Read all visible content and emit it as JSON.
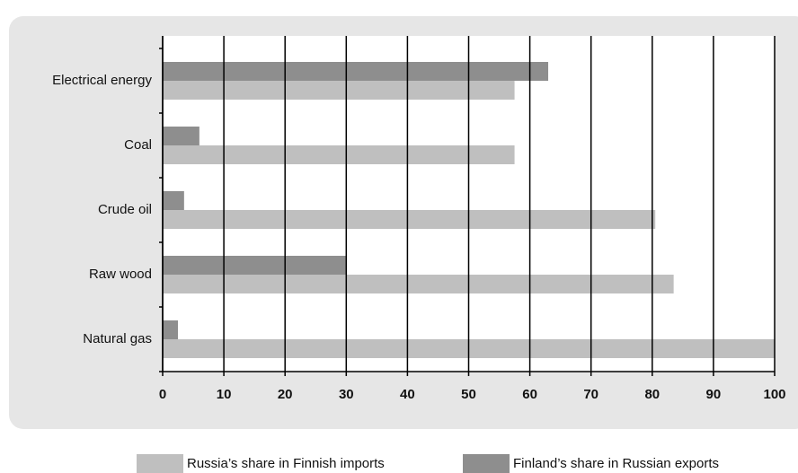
{
  "chart_data": {
    "type": "hbar",
    "categories": [
      "Electrical energy",
      "Coal",
      "Crude oil",
      "Raw wood",
      "Natural gas"
    ],
    "series": [
      {
        "name": "Russia’s share in Finnish imports",
        "color": "#bfbfbf",
        "values": [
          57.5,
          57.5,
          80.5,
          83.5,
          100
        ]
      },
      {
        "name": "Finland’s share in Russian exports",
        "color": "#8e8e8e",
        "values": [
          63,
          6,
          3.5,
          30,
          2.5
        ]
      }
    ],
    "xlim": [
      0,
      100
    ],
    "xticks": [
      0,
      10,
      20,
      30,
      40,
      50,
      60,
      70,
      80,
      90,
      100
    ],
    "grid": true,
    "legend": "bottom"
  }
}
